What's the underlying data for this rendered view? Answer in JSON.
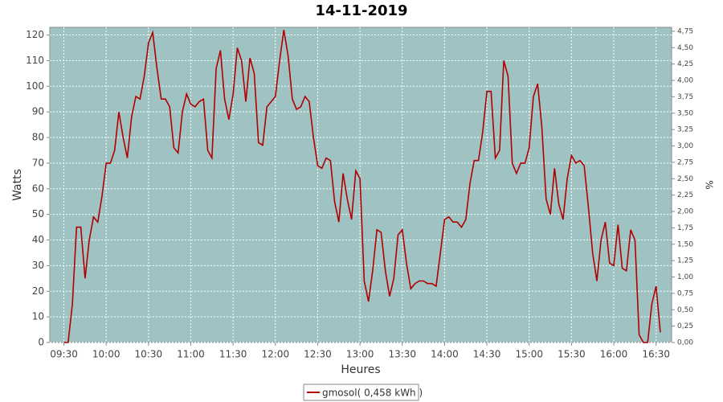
{
  "chart_data": {
    "type": "line",
    "title": "14-11-2019",
    "x_label": "Heures",
    "y_label": "Watts",
    "y2_label": "%",
    "x": [
      570,
      573,
      576,
      579,
      582,
      585,
      588,
      591,
      594,
      597,
      600,
      603,
      606,
      609,
      612,
      615,
      618,
      621,
      624,
      627,
      630,
      633,
      636,
      639,
      642,
      645,
      648,
      651,
      654,
      657,
      660,
      663,
      666,
      669,
      672,
      675,
      678,
      681,
      684,
      687,
      690,
      693,
      696,
      699,
      702,
      705,
      708,
      711,
      714,
      717,
      720,
      723,
      726,
      729,
      732,
      735,
      738,
      741,
      744,
      747,
      750,
      753,
      756,
      759,
      762,
      765,
      768,
      771,
      774,
      777,
      780,
      783,
      786,
      789,
      792,
      795,
      798,
      801,
      804,
      807,
      810,
      813,
      816,
      819,
      822,
      825,
      828,
      831,
      834,
      837,
      840,
      843,
      846,
      849,
      852,
      855,
      858,
      861,
      864,
      867,
      870,
      873,
      876,
      879,
      882,
      885,
      888,
      891,
      894,
      897,
      900,
      903,
      906,
      909,
      912,
      915,
      918,
      921,
      924,
      927,
      930,
      933,
      936,
      939,
      942,
      945,
      948,
      951,
      954,
      957,
      960,
      963,
      966,
      969,
      972,
      975,
      978,
      981,
      984,
      987,
      990,
      993
    ],
    "series": [
      {
        "name": "gmosol( 0,458 kWh )",
        "color": "#b00000",
        "values": [
          0,
          0,
          15,
          45,
          45,
          25,
          40,
          49,
          47,
          57,
          70,
          70,
          75,
          90,
          80,
          72,
          88,
          96,
          95,
          104,
          117,
          121,
          107,
          95,
          95,
          92,
          76,
          74,
          90,
          97,
          93,
          92,
          94,
          95,
          75,
          72,
          107,
          114,
          95,
          87,
          97,
          115,
          110,
          94,
          111,
          105,
          78,
          77,
          92,
          94,
          96,
          110,
          122,
          112,
          95,
          91,
          92,
          96,
          94,
          80,
          69,
          68,
          72,
          71,
          55,
          47,
          66,
          56,
          48,
          67,
          64,
          24,
          16,
          28,
          44,
          43,
          28,
          18,
          25,
          42,
          44,
          31,
          21,
          23,
          24,
          24,
          23,
          23,
          22,
          35,
          48,
          49,
          47,
          47,
          45,
          48,
          62,
          71,
          71,
          82,
          98,
          98,
          72,
          75,
          110,
          104,
          70,
          66,
          70,
          70,
          76,
          96,
          101,
          84,
          56,
          50,
          68,
          54,
          48,
          64,
          73,
          70,
          71,
          69,
          53,
          35,
          24,
          40,
          47,
          31,
          30,
          46,
          29,
          28,
          44,
          40,
          3,
          0,
          0,
          15,
          22,
          4
        ]
      }
    ],
    "xlim": [
      560,
      1001
    ],
    "xticks": [
      {
        "value": 570,
        "label": "09:30"
      },
      {
        "value": 600,
        "label": "10:00"
      },
      {
        "value": 630,
        "label": "10:30"
      },
      {
        "value": 660,
        "label": "11:00"
      },
      {
        "value": 690,
        "label": "11:30"
      },
      {
        "value": 720,
        "label": "12:00"
      },
      {
        "value": 750,
        "label": "12:30"
      },
      {
        "value": 780,
        "label": "13:00"
      },
      {
        "value": 810,
        "label": "13:30"
      },
      {
        "value": 840,
        "label": "14:00"
      },
      {
        "value": 870,
        "label": "14:30"
      },
      {
        "value": 900,
        "label": "15:00"
      },
      {
        "value": 930,
        "label": "15:30"
      },
      {
        "value": 960,
        "label": "16:00"
      },
      {
        "value": 990,
        "label": "16:30"
      }
    ],
    "ylim": [
      0,
      123
    ],
    "yticks": [
      0,
      10,
      20,
      30,
      40,
      50,
      60,
      70,
      80,
      90,
      100,
      110,
      120
    ],
    "y2lim": [
      0,
      4.81
    ],
    "y2ticks": [
      {
        "value": 0,
        "label": "0,00"
      },
      {
        "value": 0.25,
        "label": "0,25"
      },
      {
        "value": 0.5,
        "label": "0,50"
      },
      {
        "value": 0.75,
        "label": "0,75"
      },
      {
        "value": 1,
        "label": "1,00"
      },
      {
        "value": 1.25,
        "label": "1,25"
      },
      {
        "value": 1.5,
        "label": "1,50"
      },
      {
        "value": 1.75,
        "label": "1,75"
      },
      {
        "value": 2,
        "label": "2,00"
      },
      {
        "value": 2.25,
        "label": "2,25"
      },
      {
        "value": 2.5,
        "label": "2,50"
      },
      {
        "value": 2.75,
        "label": "2,75"
      },
      {
        "value": 3,
        "label": "3,00"
      },
      {
        "value": 3.25,
        "label": "3,25"
      },
      {
        "value": 3.5,
        "label": "3,50"
      },
      {
        "value": 3.75,
        "label": "3,75"
      },
      {
        "value": 4,
        "label": "4,00"
      },
      {
        "value": 4.25,
        "label": "4,25"
      },
      {
        "value": 4.5,
        "label": "4,50"
      },
      {
        "value": 4.75,
        "label": "4,75"
      }
    ],
    "grid": true,
    "plot_background": "#9fc3c3",
    "legend": "bottom"
  }
}
